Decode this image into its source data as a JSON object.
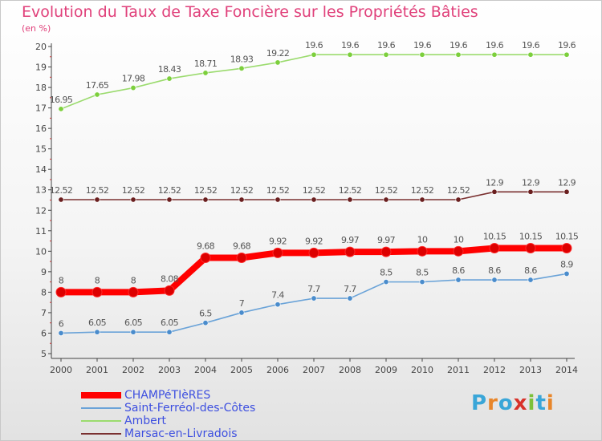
{
  "page": {
    "title": "Evolution du Taux de Taxe Foncière sur les Propriétés Bâties",
    "unit_label": "(en %)",
    "logo_text": "Proxiti"
  },
  "chart_data": {
    "type": "line",
    "title": "Evolution du Taux de Taxe Foncière sur les Propriétés Bâties",
    "ylabel": "(en %)",
    "xlabel": "",
    "x": [
      "2000",
      "2001",
      "2002",
      "2003",
      "2004",
      "2005",
      "2006",
      "2007",
      "2008",
      "2009",
      "2010",
      "2011",
      "2012",
      "2013",
      "2014"
    ],
    "ylim": [
      5,
      20
    ],
    "yticks": [
      "5",
      "6",
      "7",
      "8",
      "9",
      "10",
      "11",
      "12",
      "13",
      "14",
      "15",
      "16",
      "17",
      "18",
      "19",
      "20"
    ],
    "grid": false,
    "legend_position": "bottom-left",
    "series": [
      {
        "name": "CHAMPéTIèRES",
        "color": "#ff0000",
        "marker_color": "#dd0000",
        "emphasis": "thick",
        "values": [
          8,
          8,
          8,
          8.08,
          9.68,
          9.68,
          9.92,
          9.92,
          9.97,
          9.97,
          10,
          10,
          10.15,
          10.15,
          10.15
        ],
        "labels": [
          "8",
          "8",
          "8",
          "8.08",
          "9.68",
          "9.68",
          "9.92",
          "9.92",
          "9.97",
          "9.97",
          "10",
          "10",
          "10.15",
          "10.15",
          "10.15"
        ]
      },
      {
        "name": "Saint-Ferréol-des-Côtes",
        "color": "#6aa3d8",
        "marker_color": "#4a8ccc",
        "values": [
          6,
          6.05,
          6.05,
          6.05,
          6.5,
          7,
          7.4,
          7.7,
          7.7,
          8.5,
          8.5,
          8.6,
          8.6,
          8.6,
          8.9
        ],
        "labels": [
          "6",
          "6.05",
          "6.05",
          "6.05",
          "6.5",
          "7",
          "7.4",
          "7.7",
          "7.7",
          "8.5",
          "8.5",
          "8.6",
          "8.6",
          "8.6",
          "8.9"
        ]
      },
      {
        "name": "Ambert",
        "color": "#9bdb6e",
        "marker_color": "#7ccf3c",
        "values": [
          16.95,
          17.65,
          17.98,
          18.43,
          18.71,
          18.93,
          19.22,
          19.6,
          19.6,
          19.6,
          19.6,
          19.6,
          19.6,
          19.6,
          19.6
        ],
        "labels": [
          "16.95",
          "17.65",
          "17.98",
          "18.43",
          "18.71",
          "18.93",
          "19.22",
          "19.6",
          "19.6",
          "19.6",
          "19.6",
          "19.6",
          "19.6",
          "19.6",
          "19.6"
        ]
      },
      {
        "name": "Marsac-en-Livradois",
        "color": "#7a3030",
        "marker_color": "#6a1f1f",
        "values": [
          12.52,
          12.52,
          12.52,
          12.52,
          12.52,
          12.52,
          12.52,
          12.52,
          12.52,
          12.52,
          12.52,
          12.52,
          12.9,
          12.9,
          12.9
        ],
        "labels": [
          "12.52",
          "12.52",
          "12.52",
          "12.52",
          "12.52",
          "12.52",
          "12.52",
          "12.52",
          "12.52",
          "12.52",
          "12.52",
          "12.52",
          "12.9",
          "12.9",
          "12.9"
        ]
      }
    ]
  }
}
